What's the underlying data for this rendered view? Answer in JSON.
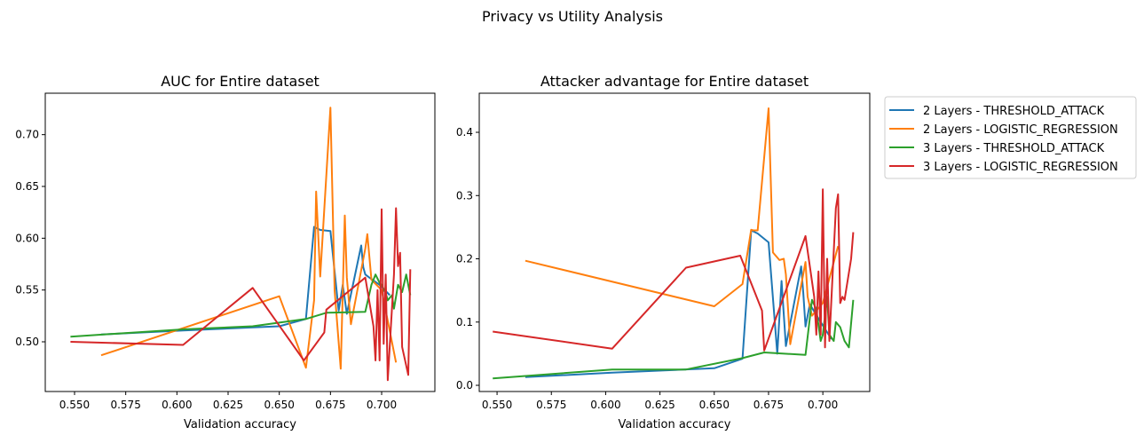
{
  "suptitle": "Privacy vs Utility Analysis",
  "legend": {
    "placement": "outside-right-top"
  },
  "series_meta": [
    {
      "name": "2 Layers - THRESHOLD_ATTACK",
      "color": "#1f77b4"
    },
    {
      "name": "2 Layers - LOGISTIC_REGRESSION",
      "color": "#ff7f0e"
    },
    {
      "name": "3 Layers - THRESHOLD_ATTACK",
      "color": "#2ca02c"
    },
    {
      "name": "3 Layers - LOGISTIC_REGRESSION",
      "color": "#d62728"
    }
  ],
  "chart_data": [
    {
      "type": "line",
      "title": "AUC for Entire dataset",
      "xlabel": "Validation accuracy",
      "ylabel": "",
      "xlim": [
        0.5357,
        0.726
      ],
      "ylim": [
        0.452,
        0.74
      ],
      "xticks": [
        "0.550",
        "0.575",
        "0.600",
        "0.625",
        "0.650",
        "0.675",
        "0.700"
      ],
      "yticks": [
        "0.50",
        "0.55",
        "0.60",
        "0.65",
        "0.70"
      ],
      "grid": false,
      "series": [
        {
          "name": "2 Layers - THRESHOLD_ATTACK",
          "x": [
            0.563,
            0.603,
            0.65,
            0.663,
            0.667,
            0.67,
            0.675,
            0.679,
            0.681,
            0.683,
            0.69,
            0.691,
            0.692,
            0.694,
            0.699,
            0.704
          ],
          "y": [
            0.507,
            0.511,
            0.515,
            0.522,
            0.611,
            0.608,
            0.607,
            0.53,
            0.555,
            0.527,
            0.593,
            0.572,
            0.565,
            0.562,
            0.555,
            0.545
          ]
        },
        {
          "name": "2 Layers - LOGISTIC_REGRESSION",
          "x": [
            0.563,
            0.65,
            0.663,
            0.667,
            0.668,
            0.67,
            0.675,
            0.677,
            0.68,
            0.682,
            0.683,
            0.685,
            0.692,
            0.693,
            0.695,
            0.7,
            0.707
          ],
          "y": [
            0.487,
            0.544,
            0.475,
            0.54,
            0.645,
            0.563,
            0.726,
            0.55,
            0.474,
            0.622,
            0.562,
            0.517,
            0.59,
            0.604,
            0.56,
            0.55,
            0.48
          ]
        },
        {
          "name": "3 Layers - THRESHOLD_ATTACK",
          "x": [
            0.548,
            0.603,
            0.637,
            0.663,
            0.673,
            0.692,
            0.695,
            0.697,
            0.699,
            0.7,
            0.702,
            0.703,
            0.705,
            0.706,
            0.708,
            0.71,
            0.712,
            0.714
          ],
          "y": [
            0.505,
            0.512,
            0.515,
            0.522,
            0.528,
            0.529,
            0.555,
            0.565,
            0.557,
            0.555,
            0.547,
            0.54,
            0.545,
            0.532,
            0.555,
            0.548,
            0.565,
            0.545
          ]
        },
        {
          "name": "3 Layers - LOGISTIC_REGRESSION",
          "x": [
            0.548,
            0.603,
            0.637,
            0.662,
            0.672,
            0.673,
            0.692,
            0.696,
            0.697,
            0.698,
            0.699,
            0.7,
            0.701,
            0.702,
            0.703,
            0.706,
            0.707,
            0.708,
            0.709,
            0.71,
            0.713,
            0.714
          ],
          "y": [
            0.5,
            0.497,
            0.552,
            0.482,
            0.509,
            0.531,
            0.562,
            0.515,
            0.482,
            0.55,
            0.482,
            0.628,
            0.498,
            0.565,
            0.463,
            0.565,
            0.629,
            0.573,
            0.586,
            0.495,
            0.468,
            0.57
          ]
        }
      ]
    },
    {
      "type": "line",
      "title": "Attacker advantage for Entire dataset",
      "xlabel": "Validation accuracy",
      "ylabel": "",
      "xlim": [
        0.5418,
        0.7216
      ],
      "ylim": [
        -0.0098,
        0.4618
      ],
      "xticks": [
        "0.550",
        "0.575",
        "0.600",
        "0.625",
        "0.650",
        "0.675",
        "0.700"
      ],
      "yticks": [
        "0.0",
        "0.1",
        "0.2",
        "0.3",
        "0.4"
      ],
      "grid": false,
      "series": [
        {
          "name": "2 Layers - THRESHOLD_ATTACK",
          "x": [
            0.563,
            0.603,
            0.65,
            0.663,
            0.667,
            0.67,
            0.675,
            0.679,
            0.681,
            0.683,
            0.69,
            0.691,
            0.692,
            0.694,
            0.699,
            0.704
          ],
          "y": [
            0.013,
            0.02,
            0.027,
            0.042,
            0.245,
            0.24,
            0.226,
            0.05,
            0.165,
            0.062,
            0.188,
            0.146,
            0.093,
            0.128,
            0.1,
            0.073
          ]
        },
        {
          "name": "2 Layers - LOGISTIC_REGRESSION",
          "x": [
            0.563,
            0.65,
            0.663,
            0.667,
            0.668,
            0.67,
            0.675,
            0.677,
            0.68,
            0.682,
            0.683,
            0.685,
            0.692,
            0.693,
            0.695,
            0.7,
            0.707
          ],
          "y": [
            0.197,
            0.125,
            0.16,
            0.246,
            0.245,
            0.245,
            0.438,
            0.21,
            0.198,
            0.2,
            0.175,
            0.065,
            0.195,
            0.14,
            0.11,
            0.13,
            0.22
          ]
        },
        {
          "name": "3 Layers - THRESHOLD_ATTACK",
          "x": [
            0.548,
            0.603,
            0.637,
            0.663,
            0.673,
            0.692,
            0.695,
            0.697,
            0.699,
            0.7,
            0.702,
            0.703,
            0.705,
            0.706,
            0.708,
            0.71,
            0.712,
            0.714
          ],
          "y": [
            0.011,
            0.025,
            0.025,
            0.043,
            0.052,
            0.048,
            0.135,
            0.12,
            0.07,
            0.08,
            0.14,
            0.08,
            0.07,
            0.1,
            0.092,
            0.07,
            0.06,
            0.135
          ]
        },
        {
          "name": "3 Layers - LOGISTIC_REGRESSION",
          "x": [
            0.548,
            0.603,
            0.637,
            0.662,
            0.672,
            0.673,
            0.692,
            0.696,
            0.697,
            0.698,
            0.699,
            0.7,
            0.701,
            0.702,
            0.703,
            0.706,
            0.707,
            0.708,
            0.709,
            0.71,
            0.713,
            0.714
          ],
          "y": [
            0.085,
            0.058,
            0.186,
            0.205,
            0.118,
            0.055,
            0.236,
            0.14,
            0.08,
            0.18,
            0.08,
            0.31,
            0.06,
            0.2,
            0.07,
            0.28,
            0.302,
            0.13,
            0.14,
            0.135,
            0.2,
            0.242
          ]
        }
      ]
    }
  ]
}
